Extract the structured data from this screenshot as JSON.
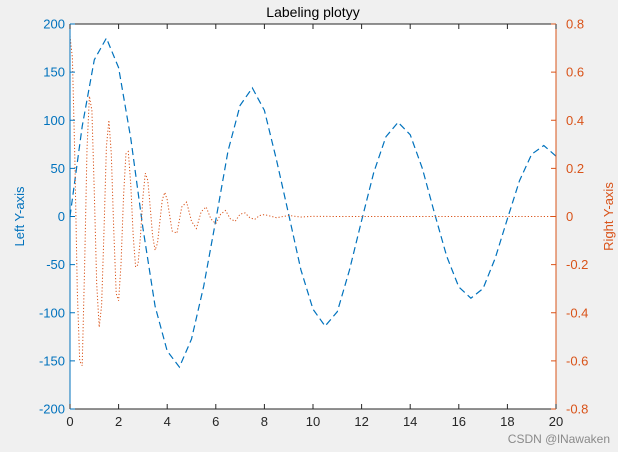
{
  "watermark": "CSDN @lNawaken",
  "chart_data": {
    "type": "line",
    "title": "Labeling plotyy",
    "xlabel": "",
    "ylabel_left": "Left Y-axis",
    "ylabel_right": "Right Y-axis",
    "xlim": [
      0,
      20
    ],
    "ylim_left": [
      -200,
      200
    ],
    "ylim_right": [
      -0.8,
      0.8
    ],
    "x_ticks": [
      "0",
      "2",
      "4",
      "6",
      "8",
      "10",
      "12",
      "14",
      "16",
      "18",
      "20"
    ],
    "y_left_ticks": [
      "200",
      "150",
      "100",
      "50",
      "0",
      "-50",
      "-100",
      "-150",
      "-200"
    ],
    "y_right_ticks": [
      "0.8",
      "0.6",
      "0.4",
      "0.2",
      "0",
      "-0.2",
      "-0.4",
      "-0.6",
      "-0.8"
    ],
    "grid": false,
    "colors": {
      "left": "#0072BD",
      "right": "#D95319",
      "axes_bg": "#ffffff",
      "figure_bg": "#f0f0f0"
    },
    "series": [
      {
        "axis": "left",
        "style": "dashed",
        "x": [
          0,
          0.5,
          1,
          1.5,
          2,
          2.5,
          3,
          3.5,
          4,
          4.5,
          5,
          5.5,
          6,
          6.5,
          7,
          7.5,
          8,
          8.5,
          9,
          9.5,
          10,
          10.5,
          11,
          11.5,
          12,
          12.5,
          13,
          13.5,
          14,
          14.5,
          15,
          15.5,
          16,
          16.5,
          17,
          17.5,
          18,
          18.5,
          19,
          19.5,
          20
        ],
        "values": [
          0,
          93.6,
          162.8,
          185.3,
          154.6,
          81.0,
          -11.8,
          -93.3,
          -139.7,
          -156.5,
          -127.4,
          -72.4,
          -3.7,
          68.0,
          115.4,
          133.6,
          110.2,
          58.7,
          2.1,
          -55.4,
          -96.3,
          -113.9,
          -98.9,
          -55.9,
          -4.3,
          45.9,
          82.8,
          97.9,
          85.0,
          50.1,
          3.4,
          -41.4,
          -73.2,
          -84.9,
          -74.8,
          -43.0,
          -2.4,
          37.2,
          64.7,
          73.8,
          62.7
        ]
      },
      {
        "axis": "right",
        "style": "dotted",
        "x": [
          0,
          0.1,
          0.2,
          0.3,
          0.4,
          0.5,
          0.6,
          0.7,
          0.8,
          0.9,
          1,
          1.1,
          1.2,
          1.3,
          1.4,
          1.5,
          1.6,
          1.7,
          1.8,
          1.9,
          2,
          2.1,
          2.2,
          2.3,
          2.4,
          2.5,
          2.6,
          2.7,
          2.8,
          2.9,
          3,
          3.1,
          3.2,
          3.3,
          3.4,
          3.5,
          3.6,
          3.7,
          3.8,
          3.9,
          4,
          4.2,
          4.4,
          4.6,
          4.8,
          5,
          5.2,
          5.4,
          5.6,
          5.8,
          6,
          6.2,
          6.4,
          6.6,
          6.8,
          7,
          7.2,
          7.4,
          7.6,
          7.8,
          8,
          8.5,
          9,
          9.5,
          10,
          11,
          12,
          14,
          16,
          18,
          20
        ],
        "values": [
          0.75,
          0.66,
          0.23,
          -0.31,
          -0.6,
          -0.62,
          -0.21,
          0.28,
          0.5,
          0.44,
          0.1,
          -0.28,
          -0.46,
          -0.37,
          -0.06,
          0.29,
          0.4,
          0.26,
          -0.05,
          -0.32,
          -0.35,
          -0.2,
          0.08,
          0.26,
          0.27,
          0.13,
          -0.08,
          -0.21,
          -0.2,
          -0.08,
          0.08,
          0.18,
          0.15,
          0.04,
          -0.08,
          -0.14,
          -0.11,
          -0.02,
          0.07,
          0.1,
          0.07,
          -0.06,
          -0.07,
          0.04,
          0.06,
          -0.02,
          -0.05,
          0.02,
          0.04,
          -0.01,
          -0.03,
          0.01,
          0.025,
          -0.01,
          -0.02,
          0.01,
          0.015,
          -0.005,
          -0.012,
          0.004,
          0.008,
          -0.005,
          0.004,
          -0.002,
          0.001,
          0,
          0,
          0,
          0,
          0,
          0
        ]
      }
    ]
  }
}
